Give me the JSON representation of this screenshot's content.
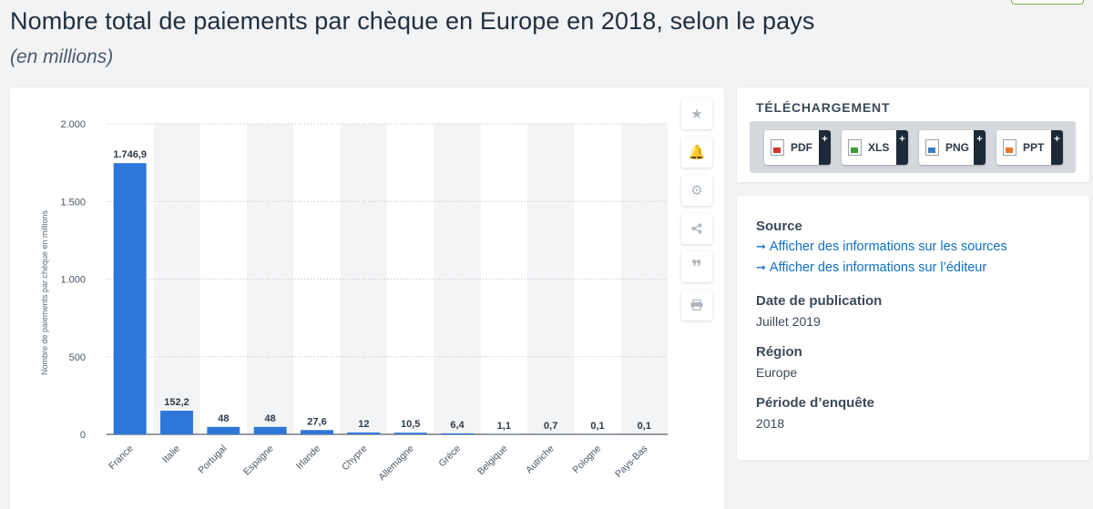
{
  "header": {
    "title": "Nombre total de paiements par chèque en Europe en 2018, selon le pays",
    "subtitle": "(en millions)"
  },
  "toolbar": {
    "items": [
      "star-icon",
      "bell-icon",
      "gear-icon",
      "share-icon",
      "quote-icon",
      "print-icon"
    ]
  },
  "download": {
    "title": "TÉLÉCHARGEMENT",
    "buttons": [
      {
        "label": "PDF",
        "plus": "+",
        "color": "#d9322e"
      },
      {
        "label": "XLS",
        "plus": "+",
        "color": "#3f9b3c"
      },
      {
        "label": "PNG",
        "plus": "+",
        "color": "#3a7fc1"
      },
      {
        "label": "PPT",
        "plus": "+",
        "color": "#e8782a"
      }
    ]
  },
  "meta": {
    "source_heading": "Source",
    "source_links": [
      "Afficher des informations sur les sources",
      "Afficher des informations sur l’éditeur"
    ],
    "link_arrow": "➞",
    "publication_heading": "Date de publication",
    "publication_value": "Juillet 2019",
    "region_heading": "Région",
    "region_value": "Europe",
    "period_heading": "Période d’enquête",
    "period_value": "2018"
  },
  "chart_data": {
    "type": "bar",
    "ylabel": "Nombre de paiements par chèque en millions",
    "ylim": [
      0,
      2000
    ],
    "yticks": [
      0,
      500,
      1000,
      1500,
      2000
    ],
    "ytick_labels": [
      "0",
      "500",
      "1.000",
      "1.500",
      "2.000"
    ],
    "grid": true,
    "bar_color": "#2f76d9",
    "categories": [
      "France",
      "Italie",
      "Portugal",
      "Espagne",
      "Irlande",
      "Chypre",
      "Allemagne",
      "Grèce",
      "Belgique",
      "Autriche",
      "Pologne",
      "Pays-Bas"
    ],
    "values": [
      1746.9,
      152.2,
      48,
      48,
      27.6,
      12,
      10.5,
      6.4,
      1.1,
      0.7,
      0.1,
      0.1
    ],
    "value_labels": [
      "1.746,9",
      "152,2",
      "48",
      "48",
      "27,6",
      "12",
      "10,5",
      "6,4",
      "1,1",
      "0,7",
      "0,1",
      "0,1"
    ]
  }
}
